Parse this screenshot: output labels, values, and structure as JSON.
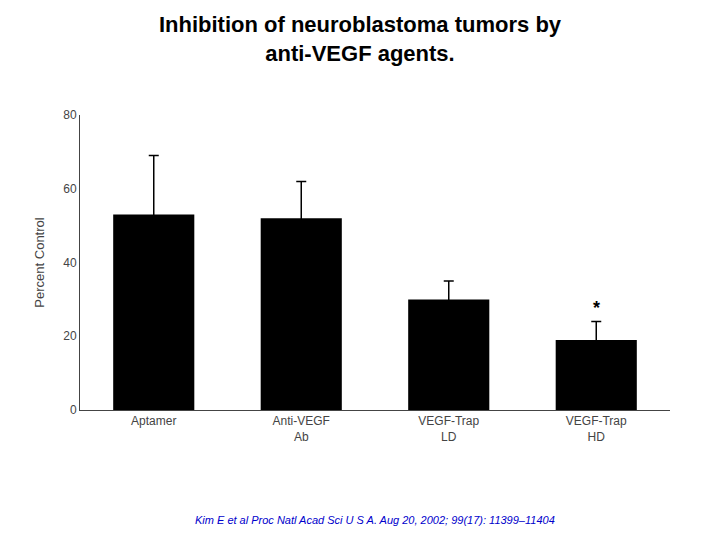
{
  "chart_data": {
    "type": "bar",
    "title": "Inhibition of neuroblastoma tumors by\nanti-VEGF agents.",
    "categories": [
      "Aptamer",
      "Anti-VEGF\nAb",
      "VEGF-Trap\nLD",
      "VEGF-Trap\nHD"
    ],
    "values": [
      53,
      52,
      30,
      19
    ],
    "errors": [
      16,
      10,
      5,
      5
    ],
    "color": "#000000",
    "ylabel": "Percent Control",
    "ylim": [
      0,
      80
    ],
    "yticks": [
      0,
      20,
      40,
      60,
      80
    ],
    "grid": false,
    "annotations": [
      {
        "text": "*",
        "category": "VEGF-Trap\nHD"
      },
      {
        "text": "Kim E et al Proc Natl Acad Sci U S A. Aug 20, 2002; 99(17): 11399–11404",
        "color": "#0000CC"
      }
    ]
  }
}
